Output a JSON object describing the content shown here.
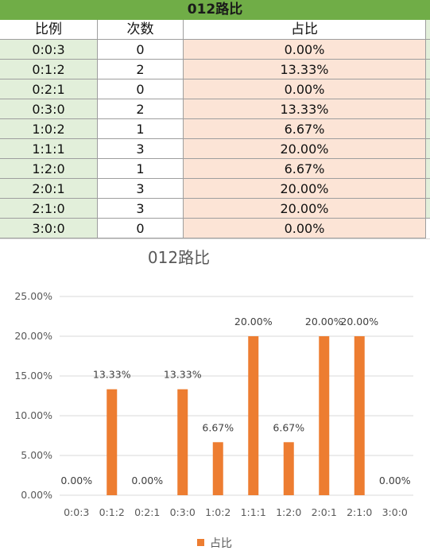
{
  "table": {
    "title": "012路比",
    "headers": [
      "比例",
      "次数",
      "占比"
    ],
    "rows": [
      {
        "ratio": "0:0:3",
        "count": "0",
        "pct": "0.00%"
      },
      {
        "ratio": "0:1:2",
        "count": "2",
        "pct": "13.33%"
      },
      {
        "ratio": "0:2:1",
        "count": "0",
        "pct": "0.00%"
      },
      {
        "ratio": "0:3:0",
        "count": "2",
        "pct": "13.33%"
      },
      {
        "ratio": "1:0:2",
        "count": "1",
        "pct": "6.67%"
      },
      {
        "ratio": "1:1:1",
        "count": "3",
        "pct": "20.00%"
      },
      {
        "ratio": "1:2:0",
        "count": "1",
        "pct": "6.67%"
      },
      {
        "ratio": "2:0:1",
        "count": "3",
        "pct": "20.00%"
      },
      {
        "ratio": "2:1:0",
        "count": "3",
        "pct": "20.00%"
      },
      {
        "ratio": "3:0:0",
        "count": "0",
        "pct": "0.00%"
      }
    ]
  },
  "colors": {
    "title_bg": "#70ad47",
    "ratio_bg": "#e2efda",
    "pct_bg": "#fce4d6",
    "bar": "#ed7d31",
    "gridline": "#d9d9d9"
  },
  "chart_data": {
    "type": "bar",
    "title": "012路比",
    "categories": [
      "0:0:3",
      "0:1:2",
      "0:2:1",
      "0:3:0",
      "1:0:2",
      "1:1:1",
      "1:2:0",
      "2:0:1",
      "2:1:0",
      "3:0:0"
    ],
    "series": [
      {
        "name": "占比",
        "values": [
          0,
          13.33,
          0,
          13.33,
          6.67,
          20,
          6.67,
          20,
          20,
          0
        ]
      }
    ],
    "data_labels": [
      "0.00%",
      "13.33%",
      "0.00%",
      "13.33%",
      "6.67%",
      "20.00%",
      "6.67%",
      "20.00%",
      "20.00%",
      "0.00%"
    ],
    "y_ticks": [
      "0.00%",
      "5.00%",
      "10.00%",
      "15.00%",
      "20.00%",
      "25.00%"
    ],
    "ylim": [
      0,
      25
    ],
    "grid": true,
    "legend_position": "bottom",
    "xlabel": "",
    "ylabel": ""
  }
}
